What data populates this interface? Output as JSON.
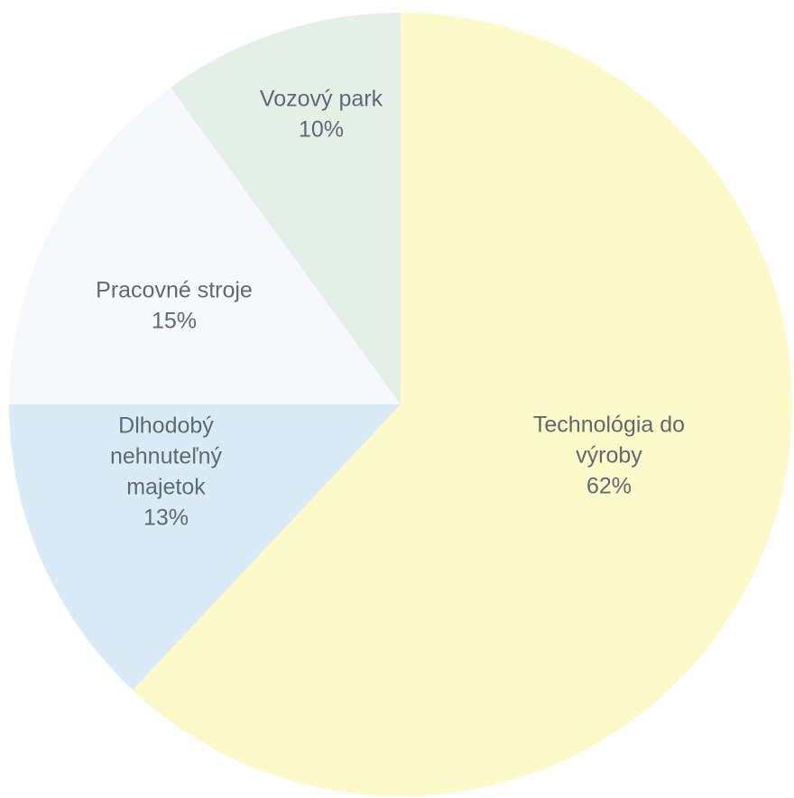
{
  "chart_data": {
    "type": "pie",
    "title": "",
    "slices": [
      {
        "name": "Technológia do výroby",
        "value": 62,
        "label_lines": [
          "Technológia do",
          "výroby",
          "62%"
        ],
        "color": "#fdf9c8"
      },
      {
        "name": "Dlhodobý nehnuteľný majetok",
        "value": 13,
        "label_lines": [
          "Dlhodobý",
          "nehnuteľný",
          "majetok",
          "13%"
        ],
        "color": "#d9ebf6"
      },
      {
        "name": "Pracovné stroje",
        "value": 15,
        "label_lines": [
          "Pracovné stroje",
          "15%"
        ],
        "color": "#f7f8fb"
      },
      {
        "name": "Vozový park",
        "value": 10,
        "label_lines": [
          "Vozový park",
          "10%"
        ],
        "color": "#e4efe8"
      }
    ],
    "start_angle_deg": 0,
    "direction": "clockwise",
    "legend": "none"
  }
}
